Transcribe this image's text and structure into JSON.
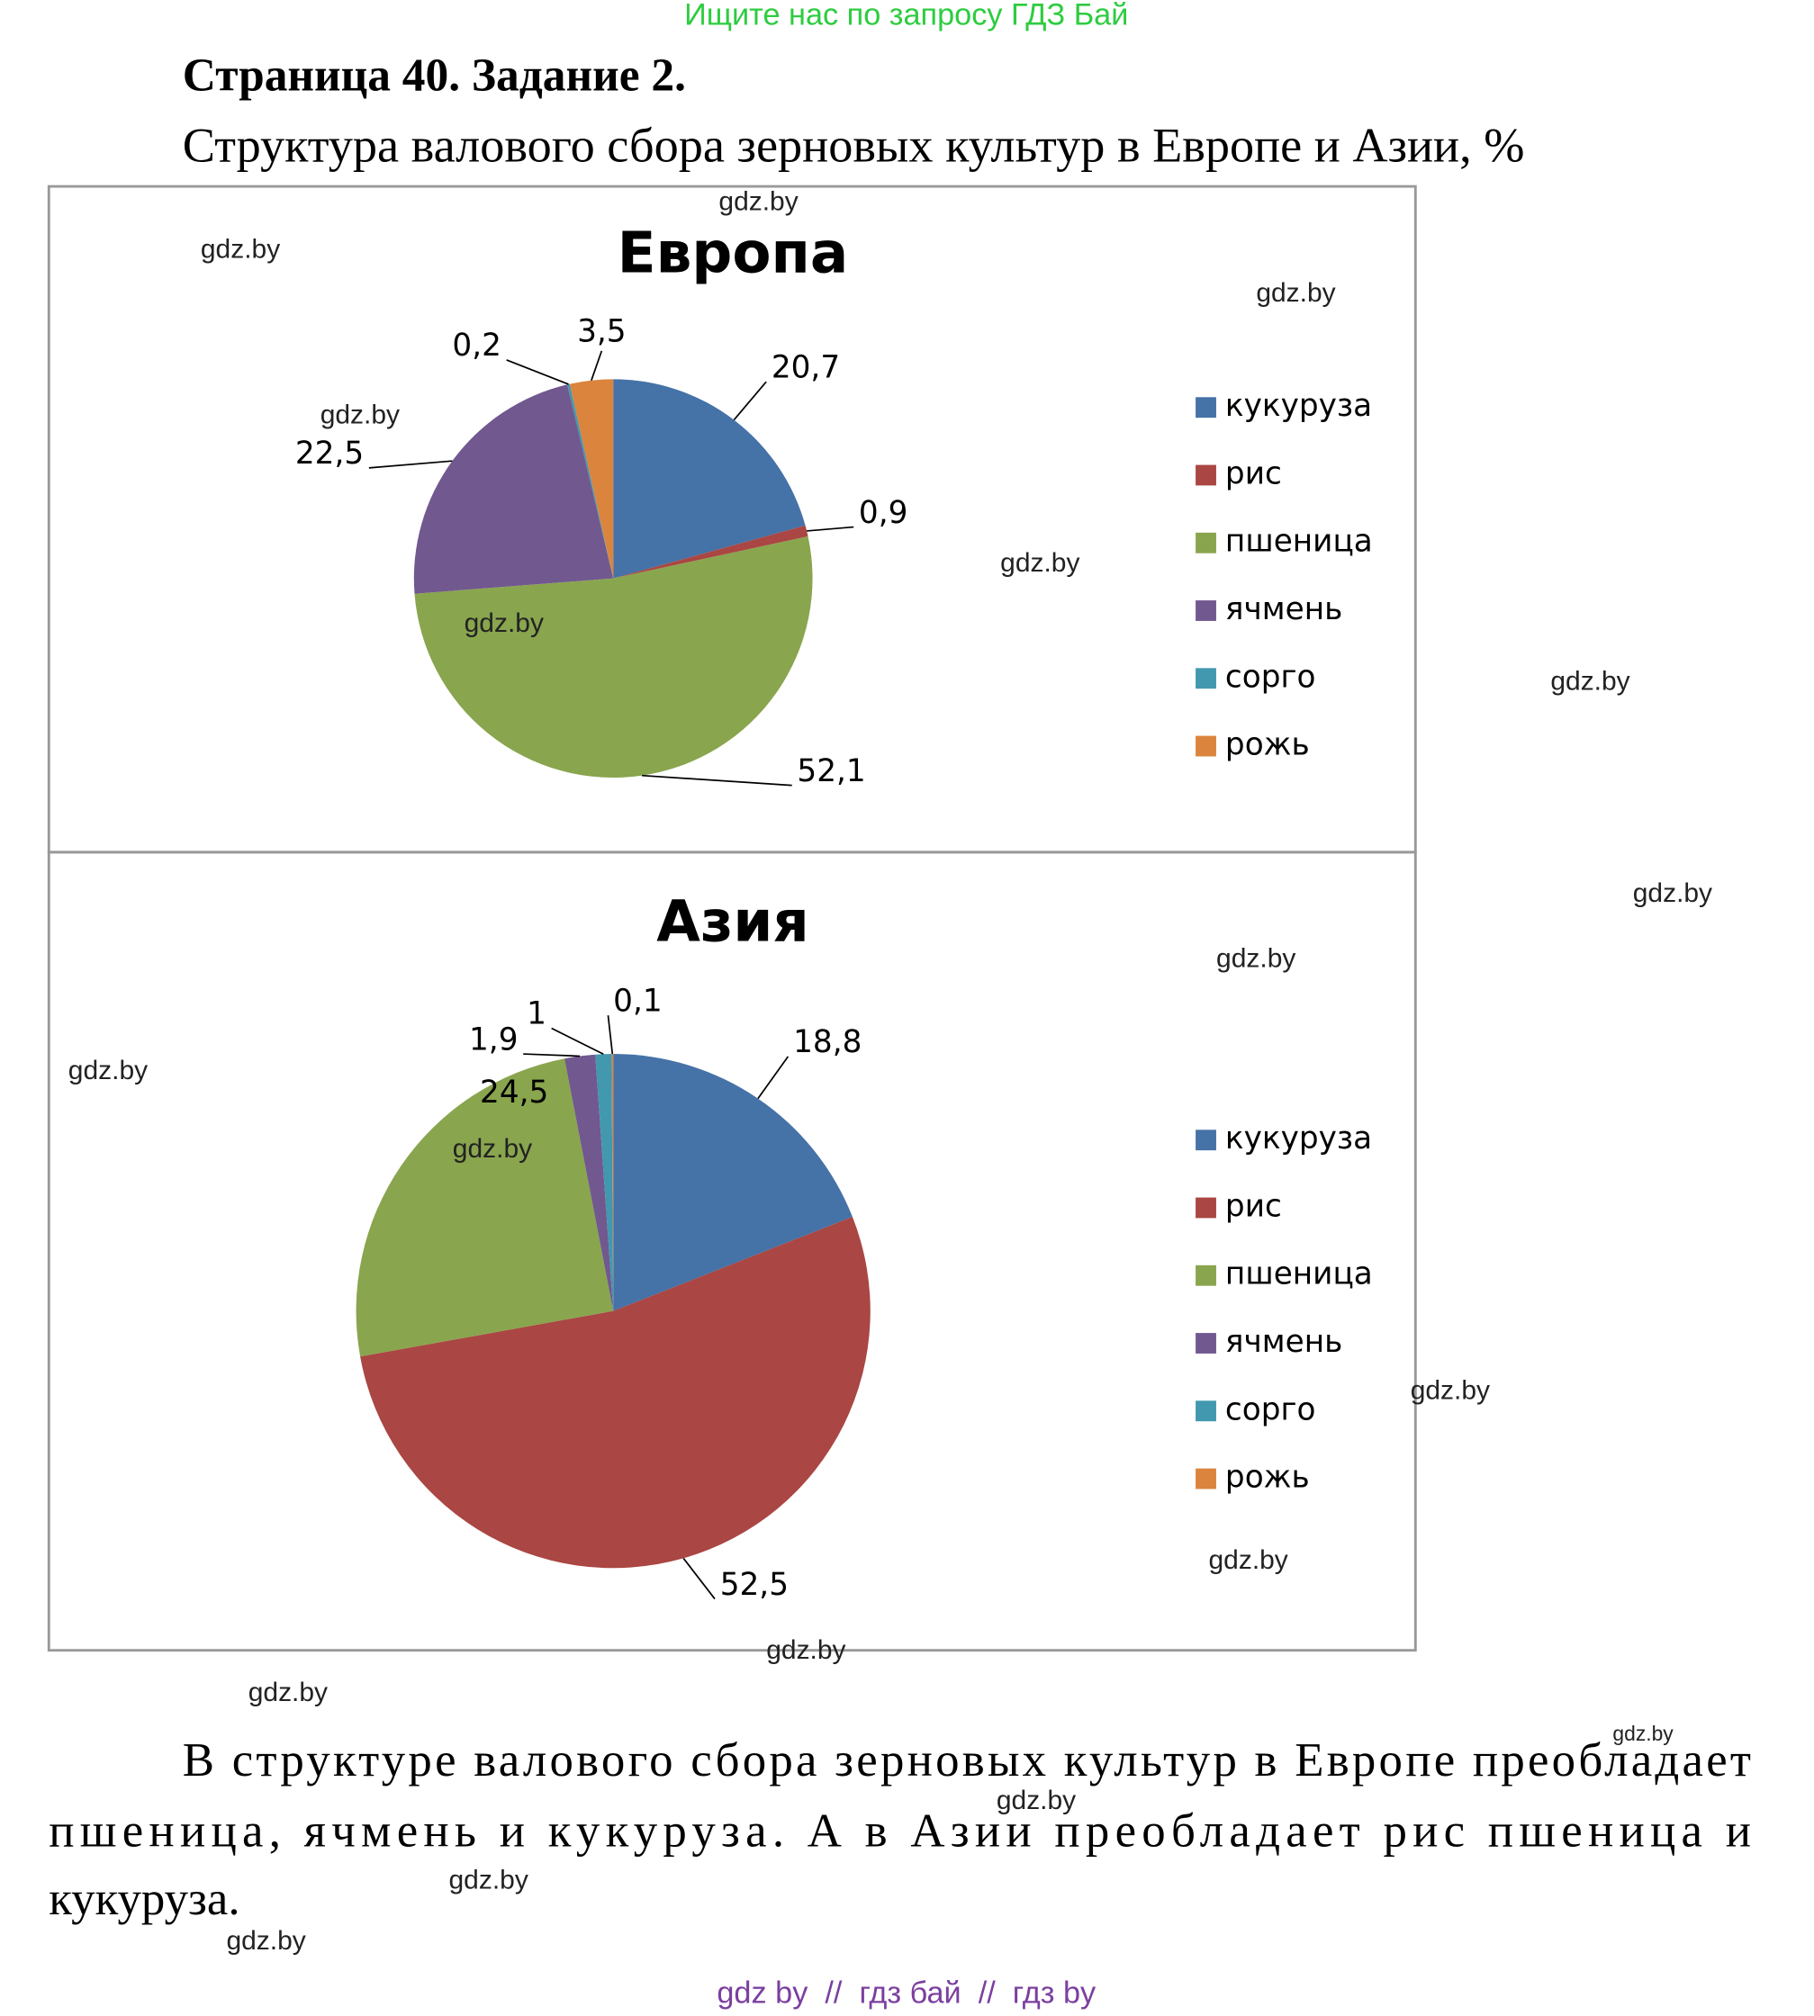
{
  "header": "Ищите нас по запросу ГДЗ Бай",
  "title": "Страница 40. Задание 2.",
  "subtitle": "Структура валового сбора зерновых культур в Европе и Азии, %",
  "chart_data": [
    {
      "type": "pie",
      "title": "Европа",
      "categories": [
        "кукуруза",
        "рис",
        "пшеница",
        "ячмень",
        "сорго",
        "рожь"
      ],
      "values": [
        20.7,
        0.9,
        52.1,
        22.5,
        0.2,
        3.5
      ],
      "value_labels": [
        "20,7",
        "0,9",
        "52,1",
        "22,5",
        "0,2",
        "3,5"
      ],
      "colors": [
        "#4572a7",
        "#aa4643",
        "#89a54e",
        "#71588f",
        "#4198af",
        "#db843d"
      ],
      "legend": "right"
    },
    {
      "type": "pie",
      "title": "Азия",
      "categories": [
        "кукуруза",
        "рис",
        "пшеница",
        "ячмень",
        "сорго",
        "рожь"
      ],
      "values": [
        18.8,
        52.5,
        24.5,
        1.9,
        1,
        0.1
      ],
      "value_labels": [
        "18,8",
        "52,5",
        "24,5",
        "1,9",
        "1",
        "0,1"
      ],
      "colors": [
        "#4572a7",
        "#aa4643",
        "#89a54e",
        "#71588f",
        "#4198af",
        "#db843d"
      ],
      "legend": "right"
    }
  ],
  "paragraph": [
    "В структуре валового сбора зерновых культур в Европе преобладает",
    "пшеница, ячмень и кукуруза. А в Азии преобладает рис пшеница и",
    "кукуруза."
  ],
  "watermarks": [
    "gdz.by",
    "gdz.by",
    "gdz.by",
    "gdz.by",
    "gdz.by",
    "gdz.by",
    "gdz.by",
    "gdz.by",
    "gdz.by",
    "gdz.by",
    "gdz.by",
    "gdz.by",
    "gdz.by",
    "gdz.by",
    "gdz.by",
    "gdz.by",
    "gdz.by",
    "gdz.by",
    "gdz.by"
  ],
  "footer": "gdz by  //  гдз бай  //  гдз by"
}
